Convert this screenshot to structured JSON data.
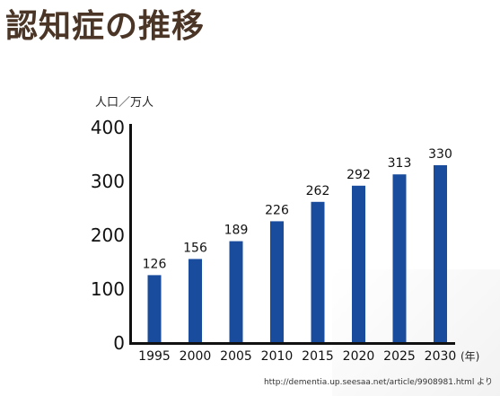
{
  "title": "認知症の推移",
  "source": "http://dementia.up.seesaa.net/article/9908981.html より",
  "chart_data": {
    "type": "bar",
    "title": "認知症の推移",
    "ylabel": "人口／万人",
    "xunit": "(年)",
    "categories": [
      "1995",
      "2000",
      "2005",
      "2010",
      "2015",
      "2020",
      "2025",
      "2030"
    ],
    "values": [
      126,
      156,
      189,
      226,
      262,
      292,
      313,
      330
    ],
    "ylim": [
      0,
      400
    ],
    "yticks": [
      0,
      100,
      200,
      300,
      400
    ],
    "bar_color": "#1a4c9e",
    "grid": false
  }
}
